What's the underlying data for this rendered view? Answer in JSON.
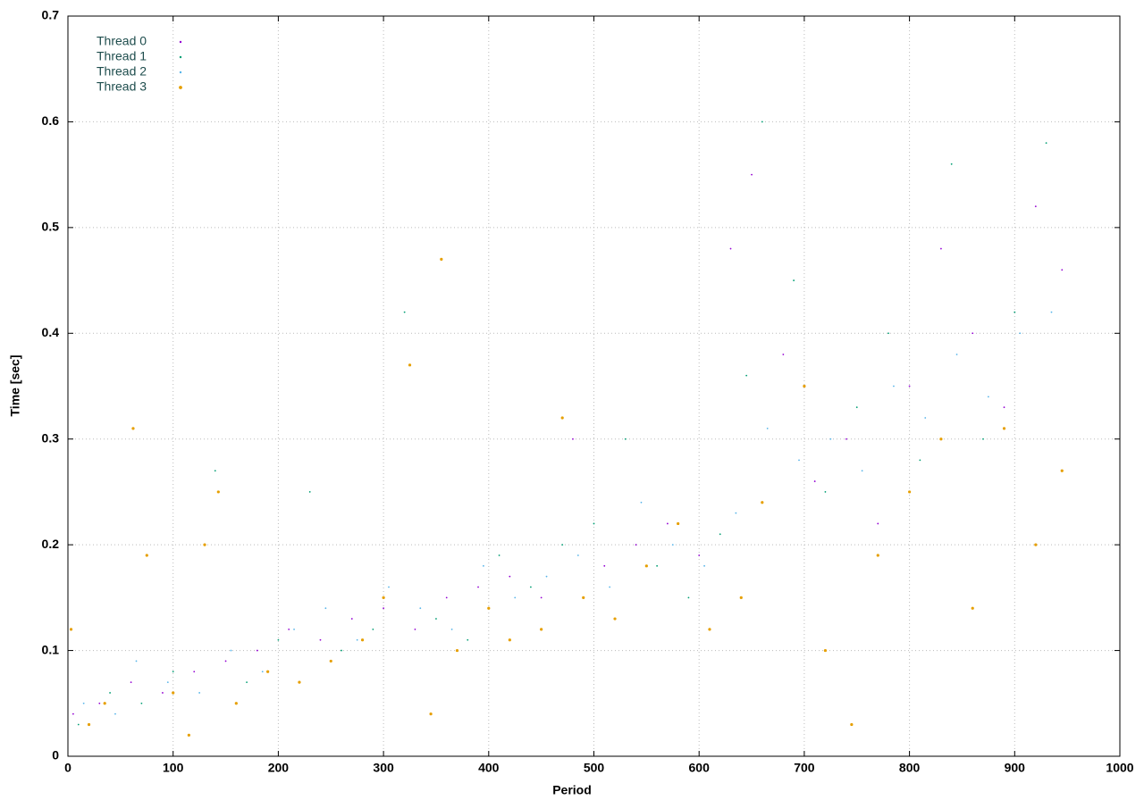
{
  "chart_data": {
    "type": "scatter",
    "x_label": "Period",
    "y_label": "Time [sec]",
    "xlim": [
      0,
      1000
    ],
    "xticks": [
      0,
      100,
      200,
      300,
      400,
      500,
      600,
      700,
      800,
      900,
      1000
    ],
    "ylim": [
      0,
      0.7
    ],
    "yticks": [
      0,
      0.1,
      0.2,
      0.3,
      0.4,
      0.5,
      0.6,
      0.7
    ],
    "grid": true,
    "legend": "top-left",
    "series": [
      {
        "name": "Thread 0",
        "color": "#9400d3",
        "x": [
          5,
          30,
          60,
          90,
          120,
          150,
          180,
          210,
          240,
          270,
          300,
          330,
          360,
          390,
          420,
          450,
          480,
          510,
          540,
          570,
          600,
          630,
          650,
          680,
          710,
          740,
          770,
          800,
          830,
          860,
          890,
          920,
          945
        ],
        "values": [
          0.04,
          0.05,
          0.07,
          0.06,
          0.08,
          0.09,
          0.1,
          0.12,
          0.11,
          0.13,
          0.14,
          0.12,
          0.15,
          0.16,
          0.17,
          0.15,
          0.3,
          0.18,
          0.2,
          0.22,
          0.19,
          0.48,
          0.55,
          0.38,
          0.26,
          0.3,
          0.22,
          0.35,
          0.48,
          0.4,
          0.33,
          0.52,
          0.46
        ]
      },
      {
        "name": "Thread 1",
        "color": "#009e73",
        "x": [
          10,
          40,
          70,
          100,
          140,
          170,
          200,
          230,
          260,
          290,
          320,
          350,
          380,
          410,
          440,
          470,
          500,
          530,
          560,
          590,
          620,
          645,
          660,
          690,
          720,
          750,
          780,
          810,
          840,
          870,
          900,
          930
        ],
        "values": [
          0.03,
          0.06,
          0.05,
          0.08,
          0.27,
          0.07,
          0.11,
          0.25,
          0.1,
          0.12,
          0.42,
          0.13,
          0.11,
          0.19,
          0.16,
          0.2,
          0.22,
          0.3,
          0.18,
          0.15,
          0.21,
          0.36,
          0.6,
          0.45,
          0.25,
          0.33,
          0.4,
          0.28,
          0.56,
          0.3,
          0.42,
          0.58
        ]
      },
      {
        "name": "Thread 2",
        "color": "#56b4e9",
        "x": [
          15,
          45,
          65,
          95,
          125,
          155,
          185,
          215,
          245,
          275,
          305,
          335,
          365,
          395,
          425,
          455,
          485,
          515,
          545,
          575,
          605,
          635,
          665,
          695,
          725,
          755,
          785,
          815,
          845,
          875,
          905,
          935
        ],
        "values": [
          0.05,
          0.04,
          0.09,
          0.07,
          0.06,
          0.1,
          0.08,
          0.12,
          0.14,
          0.11,
          0.16,
          0.14,
          0.12,
          0.18,
          0.15,
          0.17,
          0.19,
          0.16,
          0.24,
          0.2,
          0.18,
          0.23,
          0.31,
          0.28,
          0.3,
          0.27,
          0.35,
          0.32,
          0.38,
          0.34,
          0.4,
          0.42
        ]
      },
      {
        "name": "Thread 3",
        "color": "#e69f00",
        "x": [
          3,
          20,
          35,
          62,
          75,
          100,
          115,
          130,
          143,
          160,
          190,
          220,
          250,
          280,
          300,
          325,
          345,
          355,
          370,
          400,
          420,
          450,
          470,
          490,
          520,
          550,
          580,
          610,
          640,
          660,
          700,
          720,
          745,
          770,
          800,
          830,
          860,
          890,
          920,
          945
        ],
        "values": [
          0.12,
          0.03,
          0.05,
          0.31,
          0.19,
          0.06,
          0.02,
          0.2,
          0.25,
          0.05,
          0.08,
          0.07,
          0.09,
          0.11,
          0.15,
          0.37,
          0.04,
          0.47,
          0.1,
          0.14,
          0.11,
          0.12,
          0.32,
          0.15,
          0.13,
          0.18,
          0.22,
          0.12,
          0.15,
          0.24,
          0.35,
          0.1,
          0.03,
          0.19,
          0.25,
          0.3,
          0.14,
          0.31,
          0.2,
          0.27
        ]
      }
    ]
  }
}
